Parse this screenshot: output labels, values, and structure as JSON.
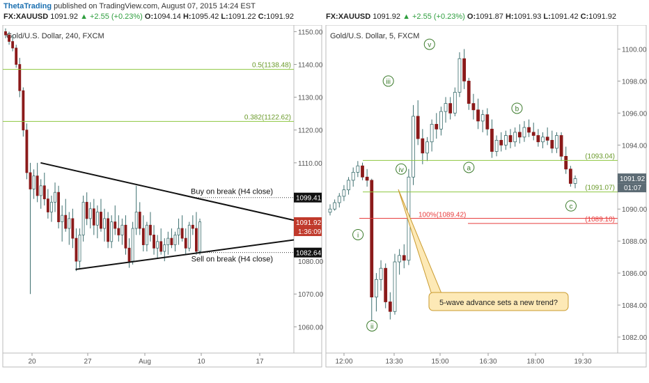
{
  "header": {
    "author": "ThetaTrading",
    "published": "published on TradingView.com, August 07, 2015 14:24 EST"
  },
  "colors": {
    "up_body": "#ffffff",
    "down_body": "#8b1a1a",
    "wick": "#3c6e6e",
    "fib": "#8dc63f",
    "red_line": "#e83c3c",
    "label_box": "#c0392b",
    "callout_fill": "#fde9b6",
    "callout_stroke": "#c99a2e",
    "wave_label": "#3a7a2a"
  },
  "chart_data": [
    {
      "type": "candlestick",
      "symbol_bar": {
        "symbol": "FX:XAUUSD",
        "last": "1091.92",
        "change": "▲ +2.55 (+0.23%)",
        "o_label": "O:",
        "o": "1094.14",
        "h_label": "H:",
        "h": "1095.42",
        "l_label": "L:",
        "l": "1091.22",
        "c_label": "C:",
        "c": "1091.92"
      },
      "title": "Gold/U.S. Dollar, 240, FXCM",
      "ylim": [
        1052,
        1152
      ],
      "y_ticks": [
        1150.0,
        1140.0,
        1130.0,
        1120.0,
        1110.0,
        1070.0,
        1060.0
      ],
      "y_tick_labels": [
        "1150.00",
        "1140.00",
        "1130.00",
        "1120.00",
        "1110.00",
        "1070.00",
        "1060.00"
      ],
      "x_tick_labels": [
        "20",
        "27",
        "Aug",
        "10",
        "17"
      ],
      "fib_levels": [
        {
          "label": "0.5(1138.48)",
          "value": 1138.48
        },
        {
          "label": "0.382(1122.62)",
          "value": 1122.62
        }
      ],
      "dotted_levels": [
        {
          "label": "Buy on break (H4 close)",
          "value": 1099.41,
          "price_label": "1099.41"
        },
        {
          "label": "Sell on break (H4 close)",
          "value": 1082.64,
          "price_label": "1082.64"
        }
      ],
      "last_price_label": "1091.92",
      "countdown": "1:36:09",
      "extra_tick_labels": [
        "1080.00"
      ],
      "triangle": {
        "upper": [
          [
            0.13,
            1110.0
          ],
          [
            1.0,
            1092.5
          ]
        ],
        "lower": [
          [
            0.25,
            1077.5
          ],
          [
            1.0,
            1086.5
          ]
        ]
      },
      "candles": [
        [
          1150,
          1151,
          1148,
          1149
        ],
        [
          1149,
          1150,
          1146,
          1147
        ],
        [
          1147,
          1149,
          1144,
          1145
        ],
        [
          1145,
          1146,
          1139,
          1140
        ],
        [
          1140,
          1142,
          1130,
          1132
        ],
        [
          1132,
          1133,
          1118,
          1120
        ],
        [
          1120,
          1122,
          1105,
          1107
        ],
        [
          1107,
          1110,
          1070,
          1102
        ],
        [
          1102,
          1108,
          1099,
          1106
        ],
        [
          1106,
          1110,
          1098,
          1100
        ],
        [
          1100,
          1105,
          1096,
          1103
        ],
        [
          1103,
          1107,
          1097,
          1099
        ],
        [
          1099,
          1102,
          1093,
          1095
        ],
        [
          1095,
          1100,
          1092,
          1098
        ],
        [
          1098,
          1104,
          1095,
          1101
        ],
        [
          1101,
          1103,
          1090,
          1092
        ],
        [
          1092,
          1097,
          1086,
          1094
        ],
        [
          1094,
          1099,
          1089,
          1090
        ],
        [
          1090,
          1095,
          1085,
          1093
        ],
        [
          1093,
          1096,
          1084,
          1087
        ],
        [
          1087,
          1090,
          1077,
          1080
        ],
        [
          1080,
          1090,
          1078,
          1088
        ],
        [
          1088,
          1100,
          1086,
          1098
        ],
        [
          1098,
          1101,
          1091,
          1093
        ],
        [
          1093,
          1098,
          1090,
          1096
        ],
        [
          1096,
          1099,
          1088,
          1091
        ],
        [
          1091,
          1097,
          1087,
          1095
        ],
        [
          1095,
          1099,
          1089,
          1090
        ],
        [
          1090,
          1096,
          1086,
          1093
        ],
        [
          1093,
          1095,
          1084,
          1086
        ],
        [
          1086,
          1094,
          1084,
          1092
        ],
        [
          1092,
          1097,
          1088,
          1090
        ],
        [
          1090,
          1094,
          1086,
          1088
        ],
        [
          1088,
          1093,
          1085,
          1091
        ],
        [
          1091,
          1094,
          1082,
          1084
        ],
        [
          1084,
          1087,
          1078,
          1080
        ],
        [
          1080,
          1092,
          1079,
          1090
        ],
        [
          1090,
          1103,
          1088,
          1095
        ],
        [
          1095,
          1098,
          1088,
          1090
        ],
        [
          1090,
          1094,
          1083,
          1085
        ],
        [
          1085,
          1092,
          1083,
          1091
        ],
        [
          1091,
          1095,
          1086,
          1088
        ],
        [
          1088,
          1091,
          1082,
          1084
        ],
        [
          1084,
          1088,
          1081,
          1086
        ],
        [
          1086,
          1090,
          1082,
          1083
        ],
        [
          1083,
          1087,
          1080,
          1085
        ],
        [
          1085,
          1089,
          1082,
          1087
        ],
        [
          1087,
          1090,
          1084,
          1085
        ],
        [
          1085,
          1089,
          1083,
          1088
        ],
        [
          1088,
          1093,
          1085,
          1090
        ],
        [
          1090,
          1094,
          1086,
          1087
        ],
        [
          1087,
          1090,
          1082,
          1084
        ],
        [
          1084,
          1092,
          1083,
          1091
        ],
        [
          1091,
          1094,
          1088,
          1090
        ],
        [
          1090,
          1095,
          1082,
          1083
        ],
        [
          1083,
          1093,
          1082,
          1092
        ]
      ]
    },
    {
      "type": "candlestick",
      "symbol_bar": {
        "symbol": "FX:XAUUSD",
        "last": "1091.92",
        "change": "▲ +2.55 (+0.23%)",
        "o_label": "O:",
        "o": "1091.87",
        "h_label": "H:",
        "h": "1091.93",
        "l_label": "L:",
        "l": "1091.42",
        "c_label": "C:",
        "c": "1091.92"
      },
      "title": "Gold/U.S. Dollar, 5, FXCM",
      "ylim": [
        1081,
        1101.5
      ],
      "y_ticks": [
        1100.0,
        1098.0,
        1096.0,
        1094.0,
        1090.0,
        1088.0,
        1086.0,
        1084.0,
        1082.0
      ],
      "y_tick_labels": [
        "1100.00",
        "1098.00",
        "1096.00",
        "1094.00",
        "1090.00",
        "1088.00",
        "1086.00",
        "1084.00",
        "1082.00"
      ],
      "x_tick_labels": [
        "12:00",
        "13:30",
        "15:00",
        "16:30",
        "18:00",
        "19:30"
      ],
      "hlines": [
        {
          "label": "(1093.04)",
          "value": 1093.04,
          "color": "fib"
        },
        {
          "label": "(1091.07)",
          "value": 1091.07,
          "color": "fib"
        },
        {
          "label": "(1089.10)",
          "value": 1089.1,
          "color": "red"
        },
        {
          "label": "100%(1089.42)",
          "value": 1089.42,
          "color": "red"
        }
      ],
      "last_price_label": "1091.92",
      "countdown": "01:07",
      "wave_labels": [
        {
          "text": "i",
          "x": 0.11,
          "y": 1088.4
        },
        {
          "text": "ii",
          "x": 0.158,
          "y": 1082.7
        },
        {
          "text": "iii",
          "x": 0.214,
          "y": 1098.0
        },
        {
          "text": "iv",
          "x": 0.258,
          "y": 1092.5
        },
        {
          "text": "v",
          "x": 0.355,
          "y": 1100.3
        },
        {
          "text": "a",
          "x": 0.49,
          "y": 1092.6
        },
        {
          "text": "b",
          "x": 0.655,
          "y": 1096.3
        },
        {
          "text": "c",
          "x": 0.84,
          "y": 1090.2
        }
      ],
      "callout": "5-wave advance sets a new trend?",
      "candles": [
        [
          1089.8,
          1090.3,
          1089.6,
          1090.0
        ],
        [
          1090.0,
          1090.6,
          1089.9,
          1090.4
        ],
        [
          1090.4,
          1091.0,
          1090.1,
          1090.8
        ],
        [
          1090.8,
          1091.5,
          1090.5,
          1091.2
        ],
        [
          1091.2,
          1092.0,
          1090.9,
          1091.8
        ],
        [
          1091.8,
          1092.6,
          1091.4,
          1092.3
        ],
        [
          1092.3,
          1093.0,
          1092.0,
          1092.7
        ],
        [
          1092.7,
          1092.9,
          1091.8,
          1092.0
        ],
        [
          1092.0,
          1092.5,
          1091.4,
          1091.8
        ],
        [
          1091.8,
          1091.9,
          1083.0,
          1084.5
        ],
        [
          1084.5,
          1086.0,
          1083.6,
          1085.6
        ],
        [
          1085.6,
          1086.8,
          1084.9,
          1086.3
        ],
        [
          1086.3,
          1086.6,
          1083.8,
          1084.2
        ],
        [
          1084.2,
          1084.8,
          1083.1,
          1083.6
        ],
        [
          1083.6,
          1087.2,
          1083.4,
          1086.7
        ],
        [
          1086.7,
          1087.5,
          1085.9,
          1087.1
        ],
        [
          1087.1,
          1087.8,
          1086.3,
          1086.8
        ],
        [
          1086.8,
          1092.5,
          1086.5,
          1092.0
        ],
        [
          1092.0,
          1096.5,
          1091.5,
          1095.8
        ],
        [
          1095.8,
          1096.8,
          1094.0,
          1094.4
        ],
        [
          1094.4,
          1095.0,
          1092.8,
          1093.5
        ],
        [
          1093.5,
          1094.5,
          1093.0,
          1094.2
        ],
        [
          1094.2,
          1095.6,
          1093.6,
          1095.3
        ],
        [
          1095.3,
          1096.0,
          1094.4,
          1095.0
        ],
        [
          1095.0,
          1096.4,
          1094.6,
          1096.1
        ],
        [
          1096.1,
          1097.0,
          1095.4,
          1096.6
        ],
        [
          1096.6,
          1097.0,
          1095.6,
          1096.0
        ],
        [
          1096.0,
          1097.6,
          1095.8,
          1097.3
        ],
        [
          1097.3,
          1099.8,
          1097.0,
          1099.4
        ],
        [
          1099.4,
          1100.0,
          1097.5,
          1098.0
        ],
        [
          1098.0,
          1098.2,
          1096.2,
          1096.6
        ],
        [
          1096.6,
          1097.2,
          1095.6,
          1096.2
        ],
        [
          1096.2,
          1096.9,
          1095.0,
          1095.5
        ],
        [
          1095.5,
          1096.2,
          1094.8,
          1095.9
        ],
        [
          1095.9,
          1096.3,
          1094.6,
          1095.0
        ],
        [
          1095.0,
          1095.6,
          1093.2,
          1093.6
        ],
        [
          1093.6,
          1094.6,
          1093.3,
          1094.3
        ],
        [
          1094.3,
          1094.8,
          1093.6,
          1094.0
        ],
        [
          1094.0,
          1094.9,
          1093.7,
          1094.6
        ],
        [
          1094.6,
          1095.0,
          1093.8,
          1094.2
        ],
        [
          1094.2,
          1095.1,
          1093.9,
          1094.8
        ],
        [
          1094.8,
          1095.3,
          1094.1,
          1094.5
        ],
        [
          1094.5,
          1095.5,
          1094.2,
          1095.1
        ],
        [
          1095.1,
          1095.6,
          1094.5,
          1094.8
        ],
        [
          1094.8,
          1095.4,
          1094.3,
          1094.6
        ],
        [
          1094.6,
          1095.0,
          1093.9,
          1094.2
        ],
        [
          1094.2,
          1094.8,
          1093.8,
          1094.5
        ],
        [
          1094.5,
          1095.1,
          1094.0,
          1094.3
        ],
        [
          1094.3,
          1094.9,
          1093.5,
          1093.8
        ],
        [
          1093.8,
          1094.8,
          1093.5,
          1094.6
        ],
        [
          1094.6,
          1094.8,
          1093.0,
          1093.3
        ],
        [
          1093.3,
          1093.9,
          1092.2,
          1092.5
        ],
        [
          1092.5,
          1092.7,
          1091.4,
          1091.6
        ],
        [
          1091.6,
          1092.1,
          1091.3,
          1091.9
        ]
      ]
    }
  ]
}
